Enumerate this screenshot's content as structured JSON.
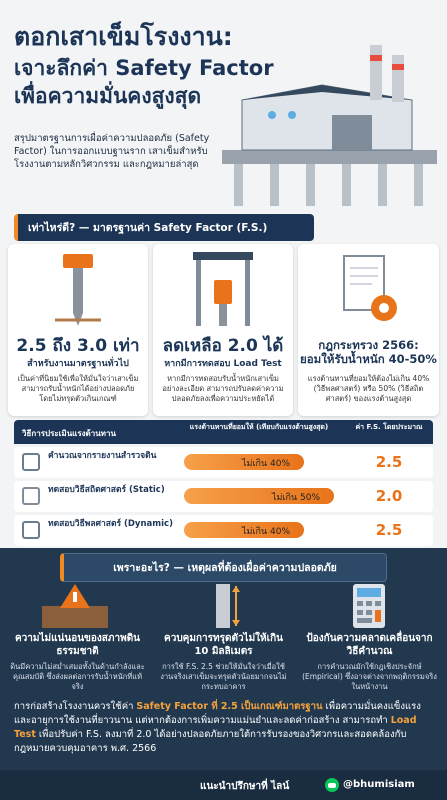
{
  "header": {
    "title_lines": [
      "ตอกเสาเข็มโรงงาน:",
      "เจาะลึกค่า Safety Factor",
      "เพื่อความมั่นคงสูงสุด"
    ],
    "description": "สรุปมาตรฐานการเผื่อค่าความปลอดภัย (Safety Factor) ในการออกแบบฐานราก เสาเข็มสำหรับโรงงานตามหลักวิศวกรรม และกฎหมายล่าสุด"
  },
  "standards": {
    "heading": "เท่าไหร่ดี? — มาตรฐานค่า Safety Factor (F.S.)",
    "cards": [
      {
        "headline": "2.5 ถึง 3.0 เท่า",
        "subhead": "สำหรับงานมาตรฐานทั่วไป",
        "body": "เป็นค่าที่นิยมใช้เพื่อให้มั่นใจว่าเสาเข็มสามารถรับน้ำหนักได้อย่างปลอดภัย โดยไม่ทรุดตัวเกินเกณฑ์"
      },
      {
        "headline": "ลดเหลือ 2.0 ได้",
        "subhead": "หากมีการทดสอบ Load Test",
        "body": "หากมีการทดสอบรับน้ำหนักเสาเข็มอย่างละเอียด สามารถปรับลดค่าความปลอดภัยลงเพื่อความประหยัดได้"
      },
      {
        "headline": "กฎกระทรวง 2566:",
        "subhead": "ยอมให้รับน้ำหนัก 40-50%",
        "body": "แรงต้านทานที่ยอมให้ต้องไม่เกิน 40% (วิธีพลศาสตร์) หรือ 50% (วิธีสถิตศาสตร์) ของแรงต้านสูงสุด"
      }
    ]
  },
  "table": {
    "headers": [
      "วิธีการประเมินแรงต้านทาน",
      "แรงต้านทานที่ยอมให้ (เทียบกับแรงต้านสูงสุด)",
      "ค่า F.S. โดยประมาณ"
    ],
    "rows": [
      {
        "method": "คำนวณจากรายงานสำรวจดิน",
        "allowable": 40,
        "allowable_label": "ไม่เกิน 40%",
        "fs": "2.5"
      },
      {
        "method": "ทดสอบวิธีสถิตศาสตร์ (Static)",
        "allowable": 50,
        "allowable_label": "ไม่เกิน 50%",
        "fs": "2.0"
      },
      {
        "method": "ทดสอบวิธีพลศาสตร์ (Dynamic)",
        "allowable": 40,
        "allowable_label": "ไม่เกิน 40%",
        "fs": "2.5"
      }
    ]
  },
  "reasons": {
    "heading": "เพราะอะไร? — เหตุผลที่ต้องเผื่อค่าความปลอดภัย",
    "cards": [
      {
        "title": "ความไม่แน่นอนของสภาพดินธรรมชาติ",
        "body": "ดินมีความไม่สม่ำเสมอทั้งในด้านกำลังและคุณสมบัติ ซึ่งส่งผลต่อการรับน้ำหนักที่แท้จริง"
      },
      {
        "title": "ควบคุมการทรุดตัวไม่ให้เกิน 10 มิลลิเมตร",
        "body": "การใช้ F.S. 2.5 ช่วยให้มั่นใจว่าเมื่อใช้งานจริงเสาเข็มจะทรุดตัวน้อยมากจนไม่กระทบอาคาร"
      },
      {
        "title": "ป้องกันความคลาดเคลื่อนจากวิธีคำนวณ",
        "body": "การคำนวณมักใช้กฎเชิงประจักษ์ (Empirical) ซึ่งอาจต่างจากพฤติกรรมจริงในหน้างาน"
      }
    ]
  },
  "summary": [
    "การก่อสร้างโรงงานควรใช้ค่า ",
    "Safety Factor ที่ 2.5 เป็นเกณฑ์มาตรฐาน",
    " เพื่อความมั่นคงแข็งแรงและอายุการใช้งานที่ยาวนาน แต่หากต้องการเพิ่มความแม่นยำและลดค่าก่อสร้าง สามารถทำ ",
    "Load Test",
    " เพื่อปรับค่า F.S. ลงมาที่ 2.0 ได้อย่างปลอดภัยภายใต้การรับรองของวิศวกรและสอดคล้องกับกฎหมายควบคุมอาคาร พ.ศ. 2566"
  ],
  "footer": {
    "text": "แนะนำปรึกษาที่ ไลน์",
    "handle": "@bhumisiam"
  }
}
